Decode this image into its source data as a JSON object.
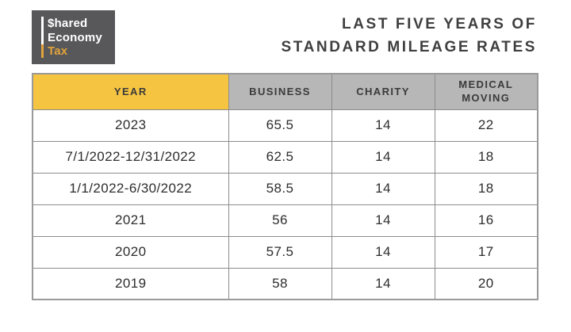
{
  "logo": {
    "line1": "$hared",
    "line2": "Economy",
    "line3": "Tax",
    "colors": {
      "background": "#58585A",
      "text": "#FFFFFF",
      "accent_gold": "#E1A33B"
    }
  },
  "title": {
    "line1": "LAST FIVE YEARS OF",
    "line2": "STANDARD MILEAGE RATES"
  },
  "table": {
    "headers": [
      "YEAR",
      "BUSINESS",
      "CHARITY",
      "MEDICAL MOVING"
    ],
    "rows": [
      [
        "2023",
        "65.5",
        "14",
        "22"
      ],
      [
        "7/1/2022-12/31/2022",
        "62.5",
        "14",
        "18"
      ],
      [
        "1/1/2022-6/30/2022",
        "58.5",
        "14",
        "18"
      ],
      [
        "2021",
        "56",
        "14",
        "16"
      ],
      [
        "2020",
        "57.5",
        "14",
        "17"
      ],
      [
        "2019",
        "58",
        "14",
        "20"
      ]
    ],
    "colors": {
      "year_header_bg": "#F5C542",
      "header_bg": "#B7B7B7",
      "border": "#8C8C8C"
    }
  },
  "chart_data": {
    "type": "table",
    "title": "LAST FIVE YEARS OF STANDARD MILEAGE RATES",
    "columns": [
      "YEAR",
      "BUSINESS",
      "CHARITY",
      "MEDICAL MOVING"
    ],
    "rows": [
      {
        "year": "2023",
        "business": 65.5,
        "charity": 14,
        "medical_moving": 22
      },
      {
        "year": "7/1/2022-12/31/2022",
        "business": 62.5,
        "charity": 14,
        "medical_moving": 18
      },
      {
        "year": "1/1/2022-6/30/2022",
        "business": 58.5,
        "charity": 14,
        "medical_moving": 18
      },
      {
        "year": "2021",
        "business": 56,
        "charity": 14,
        "medical_moving": 16
      },
      {
        "year": "2020",
        "business": 57.5,
        "charity": 14,
        "medical_moving": 17
      },
      {
        "year": "2019",
        "business": 58,
        "charity": 14,
        "medical_moving": 20
      }
    ]
  }
}
